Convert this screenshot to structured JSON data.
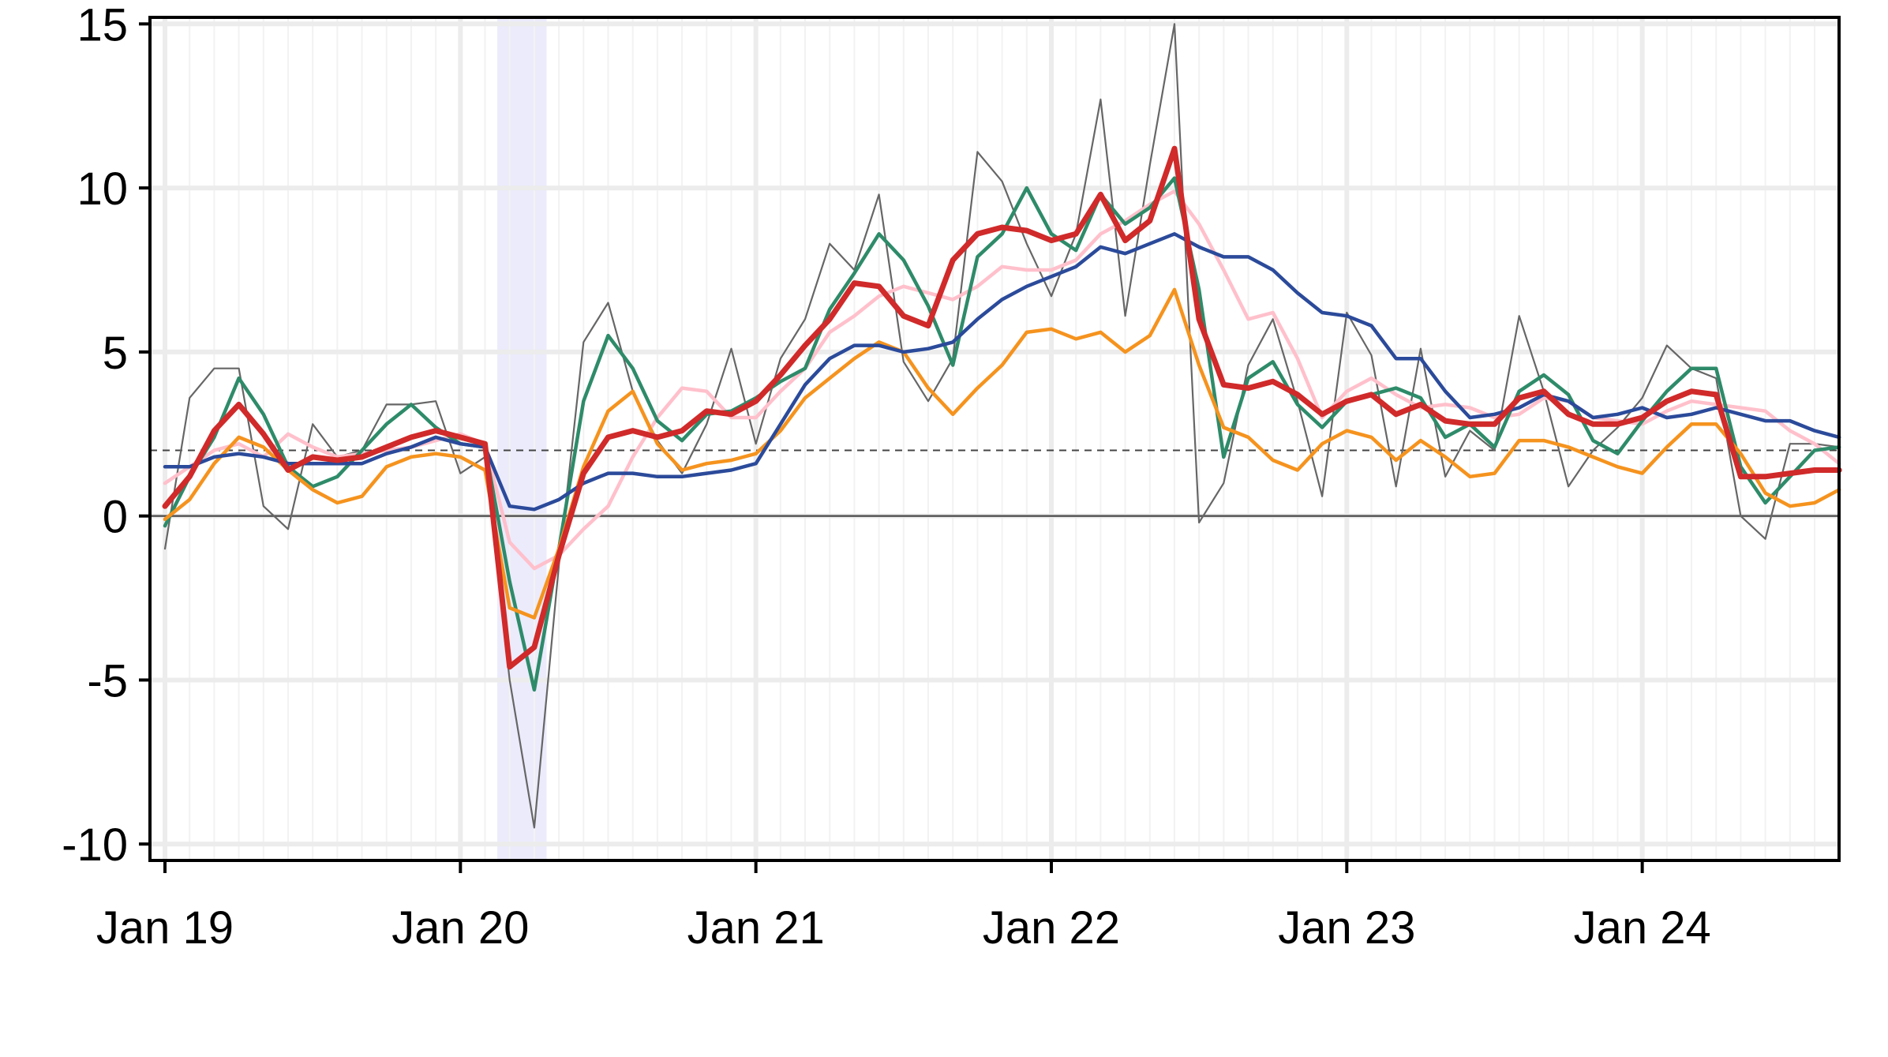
{
  "chart_data": {
    "type": "line",
    "title": "",
    "xlabel": "",
    "ylabel": "",
    "x_start": "2019-01",
    "x_end": "2024-08",
    "xlim": [
      "2019-01",
      "2024-09"
    ],
    "ylim": [
      -10.5,
      15.2
    ],
    "x_ticks": [
      {
        "label": "Jan 19",
        "date": "2019-01"
      },
      {
        "label": "Jan 20",
        "date": "2020-01"
      },
      {
        "label": "Jan 21",
        "date": "2021-01"
      },
      {
        "label": "Jan 22",
        "date": "2022-01"
      },
      {
        "label": "Jan 23",
        "date": "2023-01"
      },
      {
        "label": "Jan 24",
        "date": "2024-01"
      }
    ],
    "y_ticks": [
      {
        "label": "-10",
        "value": -10
      },
      {
        "label": "-5",
        "value": -5
      },
      {
        "label": "0",
        "value": 0
      },
      {
        "label": "5",
        "value": 5
      },
      {
        "label": "10",
        "value": 10
      },
      {
        "label": "15",
        "value": 15
      }
    ],
    "reference_lines": {
      "zero": 0,
      "target": 2
    },
    "shaded_region": {
      "start": "2020-03",
      "end": "2020-04",
      "color": "#ebebfc"
    },
    "grid": true,
    "series": [
      {
        "color": "#666666",
        "width": 2.2,
        "values": [
          -1.0,
          3.6,
          4.5,
          4.5,
          0.3,
          -0.4,
          2.8,
          1.8,
          2.0,
          3.4,
          3.4,
          3.5,
          1.3,
          1.8,
          -5.0,
          -9.5,
          -1.5,
          5.3,
          6.5,
          3.8,
          2.3,
          1.3,
          2.8,
          5.1,
          2.2,
          4.8,
          6.0,
          8.3,
          7.5,
          9.8,
          4.7,
          3.5,
          4.8,
          11.1,
          10.2,
          8.3,
          6.7,
          8.6,
          12.7,
          6.1,
          10.7,
          15.0,
          -0.2,
          1.0,
          4.6,
          6.0,
          3.5,
          0.6,
          6.2,
          4.9,
          0.9,
          5.1,
          1.2,
          2.6,
          2.0,
          6.1,
          3.8,
          0.9,
          2.0,
          2.7,
          3.6,
          5.2,
          4.5,
          4.2,
          0.0,
          -0.7,
          2.2,
          2.2,
          2.1
        ]
      },
      {
        "color": "#ffc0cb",
        "width": 4.5,
        "values": [
          1.0,
          1.5,
          2.0,
          2.2,
          1.8,
          2.5,
          2.1,
          1.8,
          1.9,
          2.0,
          2.1,
          2.3,
          2.5,
          2.2,
          -0.8,
          -1.6,
          -1.2,
          -0.4,
          0.3,
          1.8,
          3.0,
          3.9,
          3.8,
          3.0,
          3.0,
          3.8,
          4.5,
          5.6,
          6.1,
          6.7,
          7.0,
          6.8,
          6.6,
          7.0,
          7.6,
          7.5,
          7.5,
          7.8,
          8.6,
          9.0,
          9.5,
          9.9,
          8.9,
          7.5,
          6.0,
          6.2,
          4.8,
          3.0,
          3.8,
          4.2,
          3.7,
          3.3,
          3.4,
          3.3,
          3.0,
          3.1,
          3.6,
          3.5,
          3.0,
          2.9,
          2.8,
          3.2,
          3.5,
          3.4,
          3.3,
          3.2,
          2.6,
          2.2,
          1.6
        ]
      },
      {
        "color": "#2e8b6a",
        "width": 4.5,
        "values": [
          -0.3,
          1.2,
          2.4,
          4.2,
          3.1,
          1.5,
          0.9,
          1.2,
          2.0,
          2.8,
          3.4,
          2.7,
          2.2,
          2.1,
          -2.0,
          -5.3,
          -1.0,
          3.5,
          5.5,
          4.5,
          2.9,
          2.3,
          3.1,
          3.2,
          3.6,
          4.1,
          4.5,
          6.3,
          7.4,
          8.6,
          7.8,
          6.4,
          4.6,
          7.9,
          8.6,
          10.0,
          8.6,
          8.1,
          9.8,
          8.9,
          9.4,
          10.3,
          6.9,
          1.8,
          4.2,
          4.7,
          3.4,
          2.7,
          3.5,
          3.7,
          3.9,
          3.6,
          2.4,
          2.8,
          2.1,
          3.8,
          4.3,
          3.7,
          2.3,
          1.9,
          2.9,
          3.8,
          4.5,
          4.5,
          1.5,
          0.4,
          1.2,
          2.0,
          2.1
        ]
      },
      {
        "color": "#f5931e",
        "width": 4.5,
        "values": [
          -0.1,
          0.5,
          1.6,
          2.4,
          2.1,
          1.4,
          0.8,
          0.4,
          0.6,
          1.5,
          1.8,
          1.9,
          1.8,
          1.4,
          -2.8,
          -3.1,
          -1.0,
          1.5,
          3.2,
          3.8,
          2.2,
          1.4,
          1.6,
          1.7,
          1.9,
          2.6,
          3.6,
          4.2,
          4.8,
          5.3,
          5.0,
          3.9,
          3.1,
          3.9,
          4.6,
          5.6,
          5.7,
          5.4,
          5.6,
          5.0,
          5.5,
          6.9,
          4.6,
          2.7,
          2.4,
          1.7,
          1.4,
          2.2,
          2.6,
          2.4,
          1.7,
          2.3,
          1.8,
          1.2,
          1.3,
          2.3,
          2.3,
          2.1,
          1.8,
          1.5,
          1.3,
          2.1,
          2.8,
          2.8,
          1.9,
          0.7,
          0.3,
          0.4,
          0.8
        ]
      },
      {
        "color": "#2b4a9a",
        "width": 4.5,
        "values": [
          1.5,
          1.5,
          1.8,
          1.9,
          1.8,
          1.6,
          1.6,
          1.6,
          1.6,
          1.9,
          2.1,
          2.4,
          2.2,
          2.1,
          0.3,
          0.2,
          0.5,
          1.0,
          1.3,
          1.3,
          1.2,
          1.2,
          1.3,
          1.4,
          1.6,
          2.8,
          4.0,
          4.8,
          5.2,
          5.2,
          5.0,
          5.1,
          5.3,
          6.0,
          6.6,
          7.0,
          7.3,
          7.6,
          8.2,
          8.0,
          8.3,
          8.6,
          8.2,
          7.9,
          7.9,
          7.5,
          6.8,
          6.2,
          6.1,
          5.8,
          4.8,
          4.8,
          3.8,
          3.0,
          3.1,
          3.3,
          3.7,
          3.5,
          3.0,
          3.1,
          3.3,
          3.0,
          3.1,
          3.3,
          3.1,
          2.9,
          2.9,
          2.6,
          2.4
        ]
      },
      {
        "color": "#d02a2a",
        "width": 7,
        "values": [
          0.3,
          1.2,
          2.6,
          3.4,
          2.5,
          1.4,
          1.8,
          1.7,
          1.8,
          2.1,
          2.4,
          2.6,
          2.4,
          2.2,
          -4.6,
          -4.0,
          -1.2,
          1.3,
          2.4,
          2.6,
          2.4,
          2.6,
          3.2,
          3.1,
          3.5,
          4.3,
          5.2,
          6.0,
          7.1,
          7.0,
          6.1,
          5.8,
          7.8,
          8.6,
          8.8,
          8.7,
          8.4,
          8.6,
          9.8,
          8.4,
          9.0,
          11.2,
          6.0,
          4.0,
          3.9,
          4.1,
          3.7,
          3.1,
          3.5,
          3.7,
          3.1,
          3.4,
          2.9,
          2.8,
          2.8,
          3.6,
          3.8,
          3.1,
          2.8,
          2.8,
          3.0,
          3.5,
          3.8,
          3.7,
          1.2,
          1.2,
          1.3,
          1.4,
          1.4
        ]
      }
    ]
  }
}
